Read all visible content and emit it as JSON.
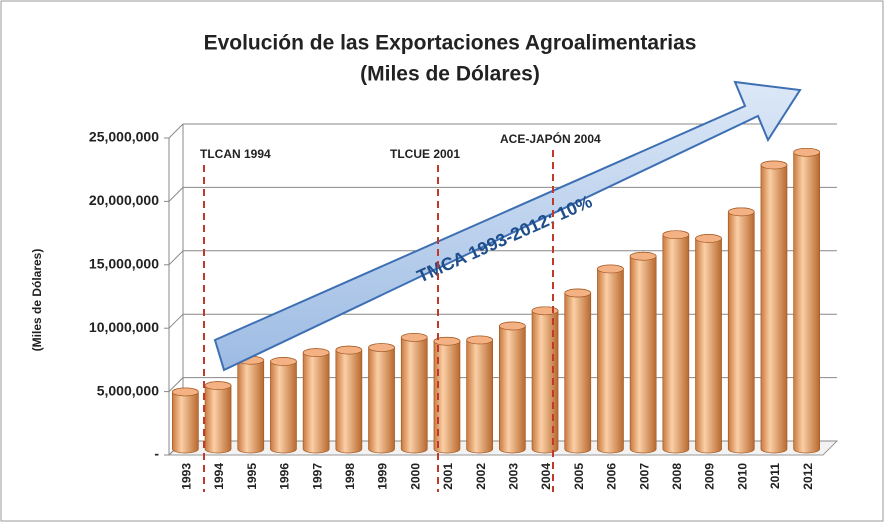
{
  "chart_data": {
    "type": "bar",
    "title": "Evolución de las Exportaciones Agroalimentarias",
    "subtitle": "(Miles de Dólares)",
    "y_label": "(Miles de Dólares)",
    "categories": [
      "1993",
      "1994",
      "1995",
      "1996",
      "1997",
      "1998",
      "1999",
      "2000",
      "2001",
      "2002",
      "2003",
      "2004",
      "2005",
      "2006",
      "2007",
      "2008",
      "2009",
      "2010",
      "2011",
      "2012"
    ],
    "values": [
      4500000,
      5000000,
      7000000,
      6900000,
      7600000,
      7800000,
      8000000,
      8800000,
      8500000,
      8600000,
      9700000,
      10900000,
      12300000,
      14200000,
      15200000,
      16900000,
      16600000,
      18700000,
      22400000,
      23400000
    ],
    "color": "#f4b183",
    "ylim": [
      0,
      25000000
    ],
    "yticks": [
      {
        "value": 0,
        "label": "-"
      },
      {
        "value": 5000000,
        "label": "5,000,000"
      },
      {
        "value": 10000000,
        "label": "10,000,000"
      },
      {
        "value": 15000000,
        "label": "15,000,000"
      },
      {
        "value": 20000000,
        "label": "20,000,000"
      },
      {
        "value": 25000000,
        "label": "25,000,000"
      }
    ],
    "grid": true,
    "annotations": [
      "TLCAN 1994",
      "TLCUE 2001",
      "ACE-JAPÓN 2004",
      "TMCA 1993-2012: 10%"
    ]
  }
}
